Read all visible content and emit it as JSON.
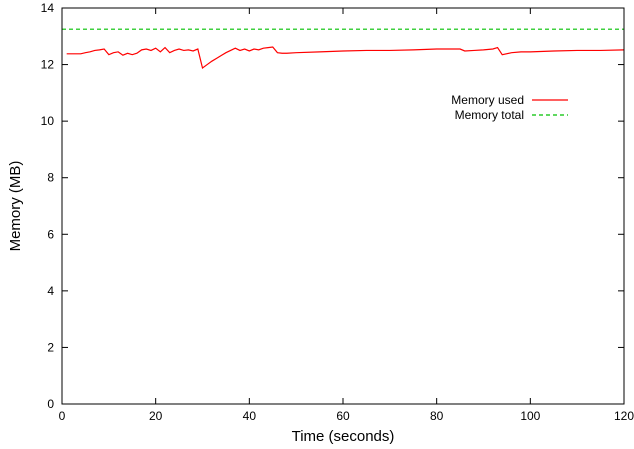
{
  "chart_data": {
    "type": "line",
    "xlabel": "Time (seconds)",
    "ylabel": "Memory (MB)",
    "xlim": [
      0,
      120
    ],
    "ylim": [
      0,
      14
    ],
    "x_ticks": [
      0,
      20,
      40,
      60,
      80,
      100,
      120
    ],
    "y_ticks": [
      0,
      2,
      4,
      6,
      8,
      10,
      12,
      14
    ],
    "grid": false,
    "legend_position": "top-right",
    "series": [
      {
        "name": "Memory used",
        "color": "#ff0000",
        "style": "solid",
        "x": [
          1,
          2,
          3,
          4,
          5,
          6,
          7,
          8,
          9,
          10,
          11,
          12,
          13,
          14,
          15,
          16,
          17,
          18,
          19,
          20,
          21,
          22,
          23,
          24,
          25,
          26,
          27,
          28,
          29,
          30,
          31,
          32,
          33,
          34,
          35,
          36,
          37,
          38,
          39,
          40,
          41,
          42,
          43,
          44,
          45,
          46,
          47,
          48,
          50,
          55,
          60,
          65,
          70,
          75,
          80,
          85,
          86,
          88,
          90,
          92,
          93,
          94,
          96,
          98,
          100,
          105,
          110,
          115,
          120
        ],
        "y": [
          12.38,
          12.38,
          12.38,
          12.38,
          12.42,
          12.45,
          12.5,
          12.52,
          12.55,
          12.35,
          12.42,
          12.45,
          12.33,
          12.4,
          12.35,
          12.4,
          12.52,
          12.55,
          12.5,
          12.58,
          12.45,
          12.6,
          12.42,
          12.5,
          12.55,
          12.5,
          12.52,
          12.48,
          12.55,
          11.88,
          12.0,
          12.12,
          12.22,
          12.32,
          12.42,
          12.5,
          12.58,
          12.5,
          12.55,
          12.48,
          12.55,
          12.52,
          12.58,
          12.6,
          12.62,
          12.42,
          12.4,
          12.4,
          12.42,
          12.45,
          12.48,
          12.5,
          12.5,
          12.52,
          12.55,
          12.55,
          12.48,
          12.5,
          12.52,
          12.55,
          12.6,
          12.35,
          12.42,
          12.45,
          12.45,
          12.48,
          12.5,
          12.5,
          12.52
        ]
      },
      {
        "name": "Memory total",
        "color": "#00c000",
        "style": "dashed",
        "x": [
          0,
          120
        ],
        "y": [
          13.25,
          13.25
        ]
      }
    ]
  }
}
